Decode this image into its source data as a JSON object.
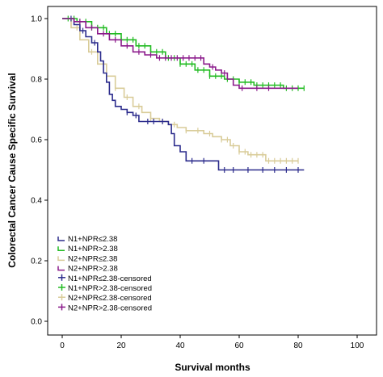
{
  "chart_data": {
    "type": "line",
    "title": "",
    "xlabel": "Survival months",
    "ylabel": "Colorectal Cancer Cause Specific Survival",
    "xlim": [
      0,
      100
    ],
    "ylim": [
      0,
      1.0
    ],
    "x_ticks": [
      0,
      20,
      40,
      60,
      80,
      100
    ],
    "y_ticks": [
      0.0,
      0.2,
      0.4,
      0.6,
      0.8,
      1.0
    ],
    "x_tick_labels": [
      "0",
      "20",
      "40",
      "60",
      "80",
      "100"
    ],
    "y_tick_labels": [
      "0.0",
      "0.2",
      "0.4",
      "0.6",
      "0.8",
      "1.0"
    ],
    "grid": false,
    "legend_position": "bottom-left",
    "legend": [
      "N1+NPR≤2.38",
      "N1+NPR>2.38",
      "N2+NPR≤2.38",
      "N2+NPR>2.38",
      "N1+NPR≤2.38-censored",
      "N1+NPR>2.38-censored",
      "N2+NPR≤2.38-censored",
      "N2+NPR>2.38-censored"
    ],
    "series": [
      {
        "name": "N1+NPR≤2.38",
        "color": "#2b2b8c",
        "x": [
          0,
          2,
          4,
          6,
          8,
          10,
          12,
          13,
          14,
          15,
          16,
          17,
          18,
          20,
          22,
          24,
          26,
          28,
          30,
          33,
          36,
          37,
          38,
          40,
          42,
          45,
          50,
          52,
          53,
          60,
          70,
          82
        ],
        "y": [
          1.0,
          1.0,
          0.98,
          0.96,
          0.94,
          0.92,
          0.89,
          0.86,
          0.82,
          0.79,
          0.75,
          0.73,
          0.71,
          0.7,
          0.69,
          0.68,
          0.66,
          0.66,
          0.66,
          0.66,
          0.65,
          0.62,
          0.58,
          0.56,
          0.53,
          0.53,
          0.53,
          0.53,
          0.5,
          0.5,
          0.5,
          0.5
        ],
        "censored_x": [
          3,
          7,
          11,
          22,
          25,
          29,
          31,
          34,
          44,
          48,
          55,
          58,
          63,
          68,
          72,
          76,
          80
        ]
      },
      {
        "name": "N1+NPR>2.38",
        "color": "#22bb22",
        "x": [
          0,
          5,
          10,
          15,
          20,
          25,
          30,
          35,
          40,
          45,
          50,
          55,
          60,
          65,
          70,
          75,
          82
        ],
        "y": [
          1.0,
          0.99,
          0.97,
          0.95,
          0.93,
          0.91,
          0.89,
          0.87,
          0.85,
          0.83,
          0.81,
          0.8,
          0.79,
          0.78,
          0.78,
          0.77,
          0.77
        ],
        "censored_x": [
          2,
          4,
          6,
          8,
          10,
          12,
          14,
          16,
          18,
          20,
          22,
          24,
          26,
          28,
          30,
          32,
          34,
          36,
          38,
          40,
          42,
          44,
          46,
          48,
          50,
          52,
          54,
          56,
          58,
          60,
          62,
          64,
          66,
          68,
          70,
          72,
          74,
          76,
          78,
          80,
          82
        ]
      },
      {
        "name": "N2+NPR≤2.38",
        "color": "#d9cc99",
        "x": [
          0,
          3,
          6,
          9,
          12,
          15,
          18,
          21,
          24,
          27,
          30,
          33,
          36,
          39,
          42,
          45,
          48,
          51,
          54,
          57,
          60,
          63,
          66,
          69,
          72,
          75,
          80
        ],
        "y": [
          1.0,
          0.97,
          0.93,
          0.89,
          0.85,
          0.81,
          0.77,
          0.74,
          0.71,
          0.69,
          0.67,
          0.66,
          0.65,
          0.64,
          0.63,
          0.63,
          0.62,
          0.61,
          0.6,
          0.58,
          0.56,
          0.55,
          0.55,
          0.53,
          0.53,
          0.53,
          0.53
        ],
        "censored_x": [
          5,
          10,
          14,
          18,
          22,
          26,
          30,
          34,
          38,
          42,
          46,
          50,
          54,
          56,
          58,
          60,
          62,
          64,
          66,
          68,
          70,
          72,
          74,
          76,
          78,
          80
        ]
      },
      {
        "name": "N2+NPR>2.38",
        "color": "#8b1a8b",
        "x": [
          0,
          4,
          8,
          12,
          16,
          20,
          24,
          28,
          32,
          36,
          40,
          44,
          48,
          50,
          52,
          54,
          56,
          58,
          60,
          64,
          68,
          72,
          76,
          80
        ],
        "y": [
          1.0,
          0.99,
          0.97,
          0.95,
          0.93,
          0.91,
          0.89,
          0.88,
          0.87,
          0.87,
          0.87,
          0.87,
          0.85,
          0.84,
          0.83,
          0.82,
          0.8,
          0.78,
          0.77,
          0.77,
          0.77,
          0.77,
          0.77,
          0.77
        ],
        "censored_x": [
          6,
          10,
          14,
          18,
          22,
          26,
          30,
          33,
          35,
          37,
          39,
          41,
          43,
          45,
          47,
          51,
          55,
          61,
          66,
          70
        ]
      }
    ]
  }
}
